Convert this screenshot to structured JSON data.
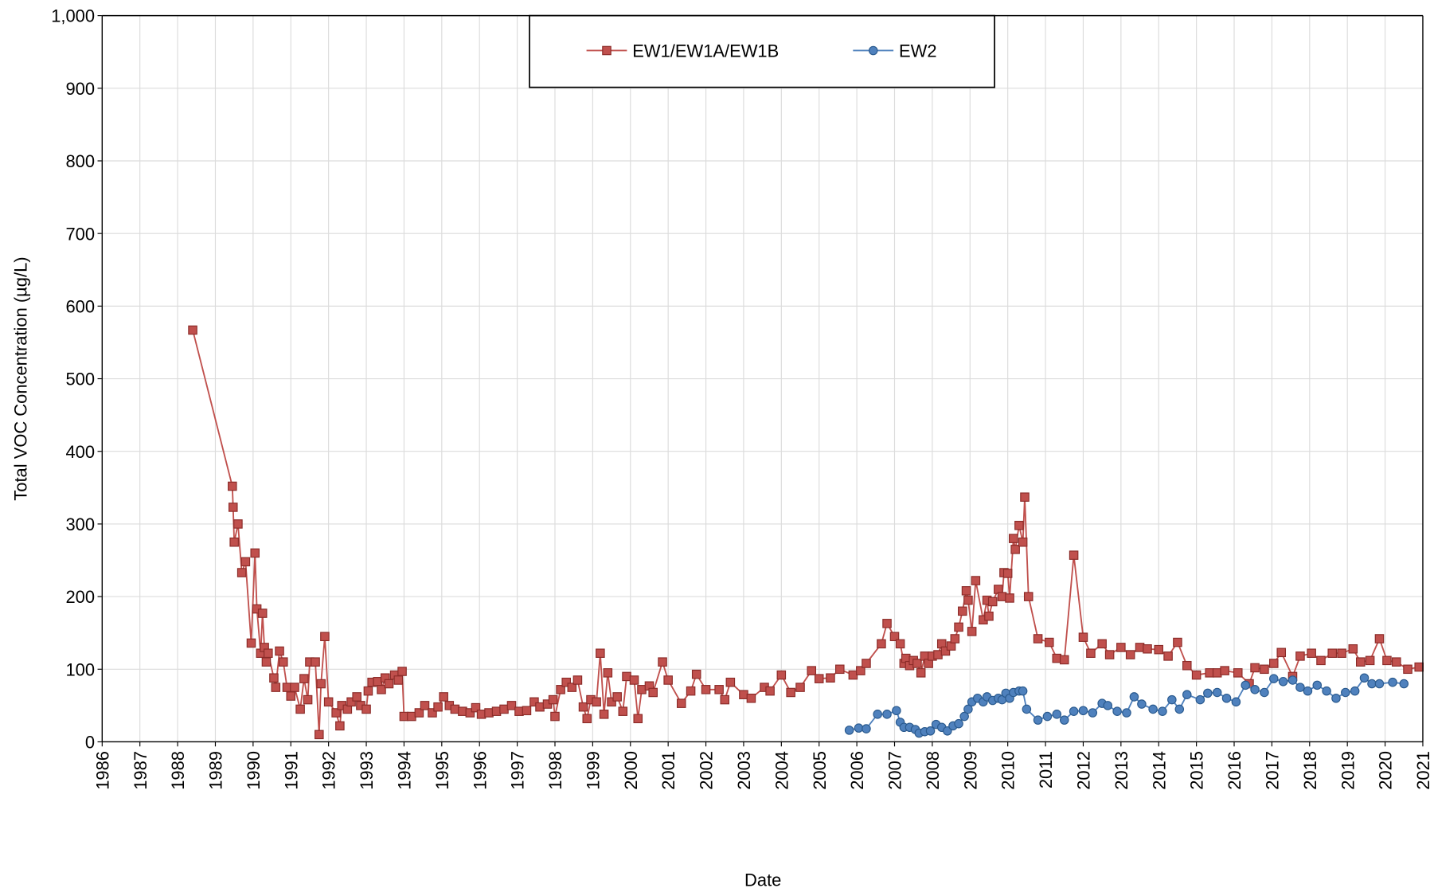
{
  "chart_data": {
    "type": "line",
    "x_label": "Date",
    "y_label": "Total VOC Concentration (µg/L)",
    "grid": true,
    "legend": "top",
    "xlim": [
      1986,
      2021
    ],
    "xticks": [
      1986,
      1987,
      1988,
      1989,
      1990,
      1991,
      1992,
      1993,
      1994,
      1995,
      1996,
      1997,
      1998,
      1999,
      2000,
      2001,
      2002,
      2003,
      2004,
      2005,
      2006,
      2007,
      2008,
      2009,
      2010,
      2011,
      2012,
      2013,
      2014,
      2015,
      2016,
      2017,
      2018,
      2019,
      2020,
      2021
    ],
    "ylim": [
      0,
      1000
    ],
    "yticks": [
      0,
      100,
      200,
      300,
      400,
      500,
      600,
      700,
      800,
      900,
      {
        "value": 1000,
        "label": "1,000"
      }
    ],
    "series": [
      {
        "name": "EW1/EW1A/EW1B",
        "color": "#c0504d",
        "marker": "square",
        "x": [
          1988.4,
          1989.45,
          1989.47,
          1989.5,
          1989.6,
          1989.7,
          1989.8,
          1989.95,
          1990.05,
          1990.1,
          1990.2,
          1990.25,
          1990.3,
          1990.35,
          1990.4,
          1990.55,
          1990.6,
          1990.7,
          1990.8,
          1990.9,
          1991.0,
          1991.1,
          1991.25,
          1991.35,
          1991.45,
          1991.5,
          1991.65,
          1991.75,
          1991.8,
          1991.9,
          1992.0,
          1992.2,
          1992.3,
          1992.35,
          1992.5,
          1992.6,
          1992.75,
          1992.85,
          1993.0,
          1993.05,
          1993.15,
          1993.3,
          1993.4,
          1993.5,
          1993.6,
          1993.75,
          1993.85,
          1993.95,
          1994.0,
          1994.2,
          1994.4,
          1994.55,
          1994.75,
          1994.9,
          1995.05,
          1995.2,
          1995.35,
          1995.55,
          1995.75,
          1995.9,
          1996.05,
          1996.25,
          1996.45,
          1996.65,
          1996.85,
          1997.05,
          1997.25,
          1997.45,
          1997.6,
          1997.8,
          1997.95,
          1998.0,
          1998.15,
          1998.3,
          1998.45,
          1998.6,
          1998.75,
          1998.85,
          1998.95,
          1999.1,
          1999.2,
          1999.3,
          1999.4,
          1999.5,
          1999.65,
          1999.8,
          1999.9,
          2000.1,
          2000.2,
          2000.3,
          2000.5,
          2000.6,
          2000.85,
          2001.0,
          2001.35,
          2001.6,
          2001.75,
          2002.0,
          2002.35,
          2002.5,
          2002.65,
          2003.0,
          2003.2,
          2003.55,
          2003.7,
          2004.0,
          2004.25,
          2004.5,
          2004.8,
          2005.0,
          2005.3,
          2005.55,
          2005.9,
          2006.1,
          2006.25,
          2006.65,
          2006.8,
          2007.0,
          2007.15,
          2007.25,
          2007.3,
          2007.4,
          2007.5,
          2007.6,
          2007.7,
          2007.8,
          2007.9,
          2008.0,
          2008.15,
          2008.25,
          2008.35,
          2008.5,
          2008.6,
          2008.7,
          2008.8,
          2008.9,
          2008.95,
          2009.05,
          2009.15,
          2009.35,
          2009.45,
          2009.5,
          2009.6,
          2009.75,
          2009.85,
          2009.9,
          2010.0,
          2010.05,
          2010.15,
          2010.2,
          2010.3,
          2010.4,
          2010.45,
          2010.55,
          2010.8,
          2011.1,
          2011.3,
          2011.5,
          2011.75,
          2012.0,
          2012.2,
          2012.5,
          2012.7,
          2013.0,
          2013.25,
          2013.5,
          2013.7,
          2014.0,
          2014.25,
          2014.5,
          2014.75,
          2015.0,
          2015.35,
          2015.55,
          2015.75,
          2016.1,
          2016.4,
          2016.55,
          2016.8,
          2017.05,
          2017.25,
          2017.55,
          2017.75,
          2018.05,
          2018.3,
          2018.6,
          2018.85,
          2019.15,
          2019.35,
          2019.6,
          2019.85,
          2020.05,
          2020.3,
          2020.6,
          2020.9
        ],
        "values": [
          567,
          352,
          323,
          275,
          300,
          233,
          248,
          136,
          260,
          183,
          122,
          177,
          130,
          110,
          122,
          88,
          75,
          125,
          110,
          75,
          63,
          75,
          45,
          87,
          58,
          110,
          110,
          10,
          80,
          145,
          55,
          40,
          22,
          50,
          45,
          55,
          62,
          50,
          45,
          70,
          82,
          83,
          72,
          88,
          80,
          92,
          85,
          97,
          35,
          35,
          40,
          50,
          40,
          48,
          62,
          50,
          45,
          42,
          40,
          47,
          38,
          40,
          42,
          45,
          50,
          42,
          43,
          55,
          48,
          52,
          58,
          35,
          72,
          82,
          75,
          85,
          48,
          32,
          58,
          55,
          122,
          38,
          95,
          55,
          62,
          42,
          90,
          85,
          32,
          72,
          77,
          68,
          110,
          85,
          53,
          70,
          93,
          72,
          72,
          58,
          82,
          65,
          60,
          75,
          70,
          92,
          68,
          75,
          98,
          87,
          88,
          100,
          92,
          98,
          108,
          135,
          163,
          145,
          135,
          108,
          115,
          105,
          112,
          108,
          95,
          118,
          108,
          118,
          120,
          135,
          125,
          132,
          142,
          158,
          180,
          208,
          195,
          152,
          222,
          168,
          195,
          173,
          193,
          210,
          200,
          233,
          232,
          198,
          280,
          265,
          298,
          275,
          337,
          200,
          142,
          137,
          115,
          113,
          257,
          144,
          122,
          135,
          120,
          130,
          120,
          130,
          128,
          127,
          118,
          137,
          105,
          92,
          95,
          95,
          98,
          95,
          80,
          102,
          100,
          108,
          123,
          90,
          118,
          122,
          112,
          122,
          122,
          128,
          110,
          112,
          142,
          112,
          110,
          100,
          103
        ]
      },
      {
        "name": "EW2",
        "color": "#4f81bd",
        "marker": "circle",
        "x": [
          2005.8,
          2006.05,
          2006.25,
          2006.55,
          2006.8,
          2007.05,
          2007.15,
          2007.25,
          2007.4,
          2007.55,
          2007.65,
          2007.8,
          2007.95,
          2008.1,
          2008.25,
          2008.4,
          2008.55,
          2008.7,
          2008.85,
          2008.95,
          2009.05,
          2009.2,
          2009.35,
          2009.45,
          2009.6,
          2009.75,
          2009.85,
          2009.95,
          2010.05,
          2010.15,
          2010.3,
          2010.4,
          2010.5,
          2010.8,
          2011.05,
          2011.3,
          2011.5,
          2011.75,
          2012.0,
          2012.25,
          2012.5,
          2012.65,
          2012.9,
          2013.15,
          2013.35,
          2013.55,
          2013.85,
          2014.1,
          2014.35,
          2014.55,
          2014.75,
          2015.1,
          2015.3,
          2015.55,
          2015.8,
          2016.05,
          2016.3,
          2016.55,
          2016.8,
          2017.05,
          2017.3,
          2017.55,
          2017.75,
          2017.95,
          2018.2,
          2018.45,
          2018.7,
          2018.95,
          2019.2,
          2019.45,
          2019.65,
          2019.85,
          2020.2,
          2020.5
        ],
        "values": [
          16,
          19,
          18,
          38,
          38,
          43,
          27,
          20,
          20,
          17,
          12,
          14,
          15,
          24,
          20,
          15,
          22,
          25,
          35,
          45,
          55,
          60,
          55,
          62,
          57,
          60,
          58,
          67,
          60,
          68,
          70,
          70,
          45,
          30,
          35,
          38,
          30,
          42,
          43,
          40,
          53,
          50,
          42,
          40,
          62,
          52,
          45,
          42,
          58,
          45,
          65,
          58,
          67,
          68,
          60,
          55,
          78,
          72,
          68,
          87,
          83,
          85,
          75,
          70,
          78,
          70,
          60,
          68,
          70,
          88,
          80,
          80,
          82,
          80
        ]
      }
    ]
  }
}
